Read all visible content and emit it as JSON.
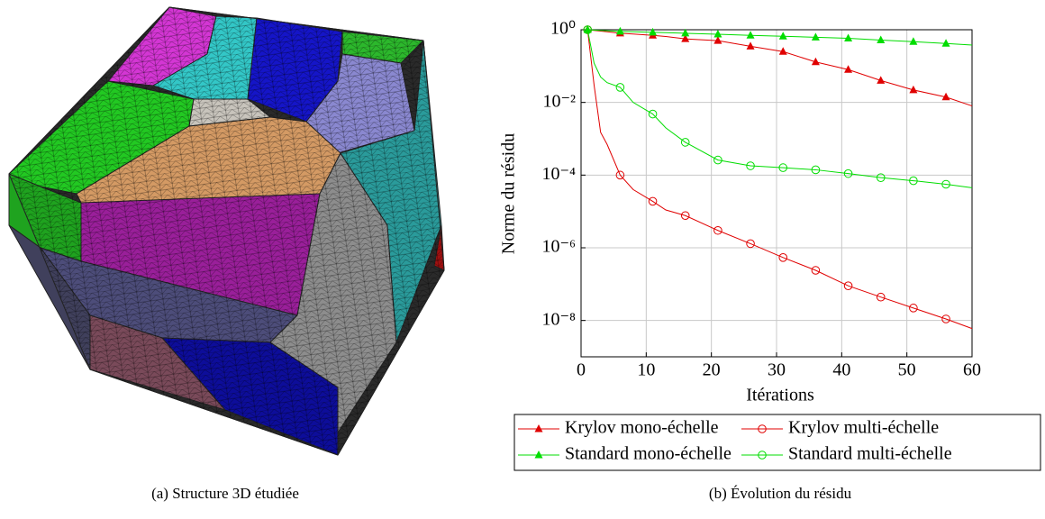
{
  "captions": [
    "(a) Structure 3D étudiée",
    "(b) Évolution du résidu"
  ],
  "chart_data": {
    "type": "line",
    "x_label": "Itérations",
    "y_label": "Norme du résidu",
    "x": [
      1,
      2,
      3,
      4,
      6,
      8,
      11,
      13,
      16,
      21,
      26,
      31,
      36,
      41,
      46,
      51,
      56,
      60
    ],
    "markevery": 5,
    "xlim": [
      0,
      60
    ],
    "xticks": [
      0,
      10,
      20,
      30,
      40,
      50,
      60
    ],
    "ylim": [
      1e-09,
      1
    ],
    "yscale": "log",
    "yticks": [
      {
        "value": 1,
        "label": "10⁰"
      },
      {
        "value": 0.01,
        "label": "10⁻²"
      },
      {
        "value": 0.0001,
        "label": "10⁻⁴"
      },
      {
        "value": 1e-06,
        "label": "10⁻⁶"
      },
      {
        "value": 1e-08,
        "label": "10⁻⁸"
      }
    ],
    "grid": true,
    "legend": "bottom",
    "series": [
      {
        "name": "Krylov mono-échelle",
        "color": "#e00000",
        "marker": "triangle",
        "values": [
          1,
          0.96,
          0.92,
          0.88,
          0.8,
          0.76,
          0.7,
          0.65,
          0.56,
          0.5,
          0.35,
          0.25,
          0.13,
          0.08,
          0.04,
          0.022,
          0.014,
          0.008
        ]
      },
      {
        "name": "Krylov multi-échelle",
        "color": "#e00000",
        "marker": "circle",
        "values": [
          1,
          0.03,
          0.0015,
          0.0007,
          0.0001,
          4e-05,
          1.9e-05,
          1.1e-05,
          7.7e-06,
          3e-06,
          1.3e-06,
          5.4e-07,
          2.4e-07,
          9e-08,
          4.4e-08,
          2.2e-08,
          1.1e-08,
          6e-09
        ]
      },
      {
        "name": "Standard mono-échelle",
        "color": "#00dd00",
        "marker": "triangle",
        "values": [
          1,
          0.98,
          0.96,
          0.94,
          0.9,
          0.88,
          0.85,
          0.83,
          0.8,
          0.75,
          0.7,
          0.66,
          0.62,
          0.58,
          0.52,
          0.47,
          0.42,
          0.38
        ]
      },
      {
        "name": "Standard multi-échelle",
        "color": "#00dd00",
        "marker": "circle",
        "values": [
          1,
          0.12,
          0.05,
          0.035,
          0.026,
          0.01,
          0.0048,
          0.002,
          0.0008,
          0.00026,
          0.00018,
          0.00016,
          0.00014,
          0.00011,
          8.5e-05,
          7e-05,
          5.6e-05,
          4.5e-05
        ]
      }
    ]
  }
}
